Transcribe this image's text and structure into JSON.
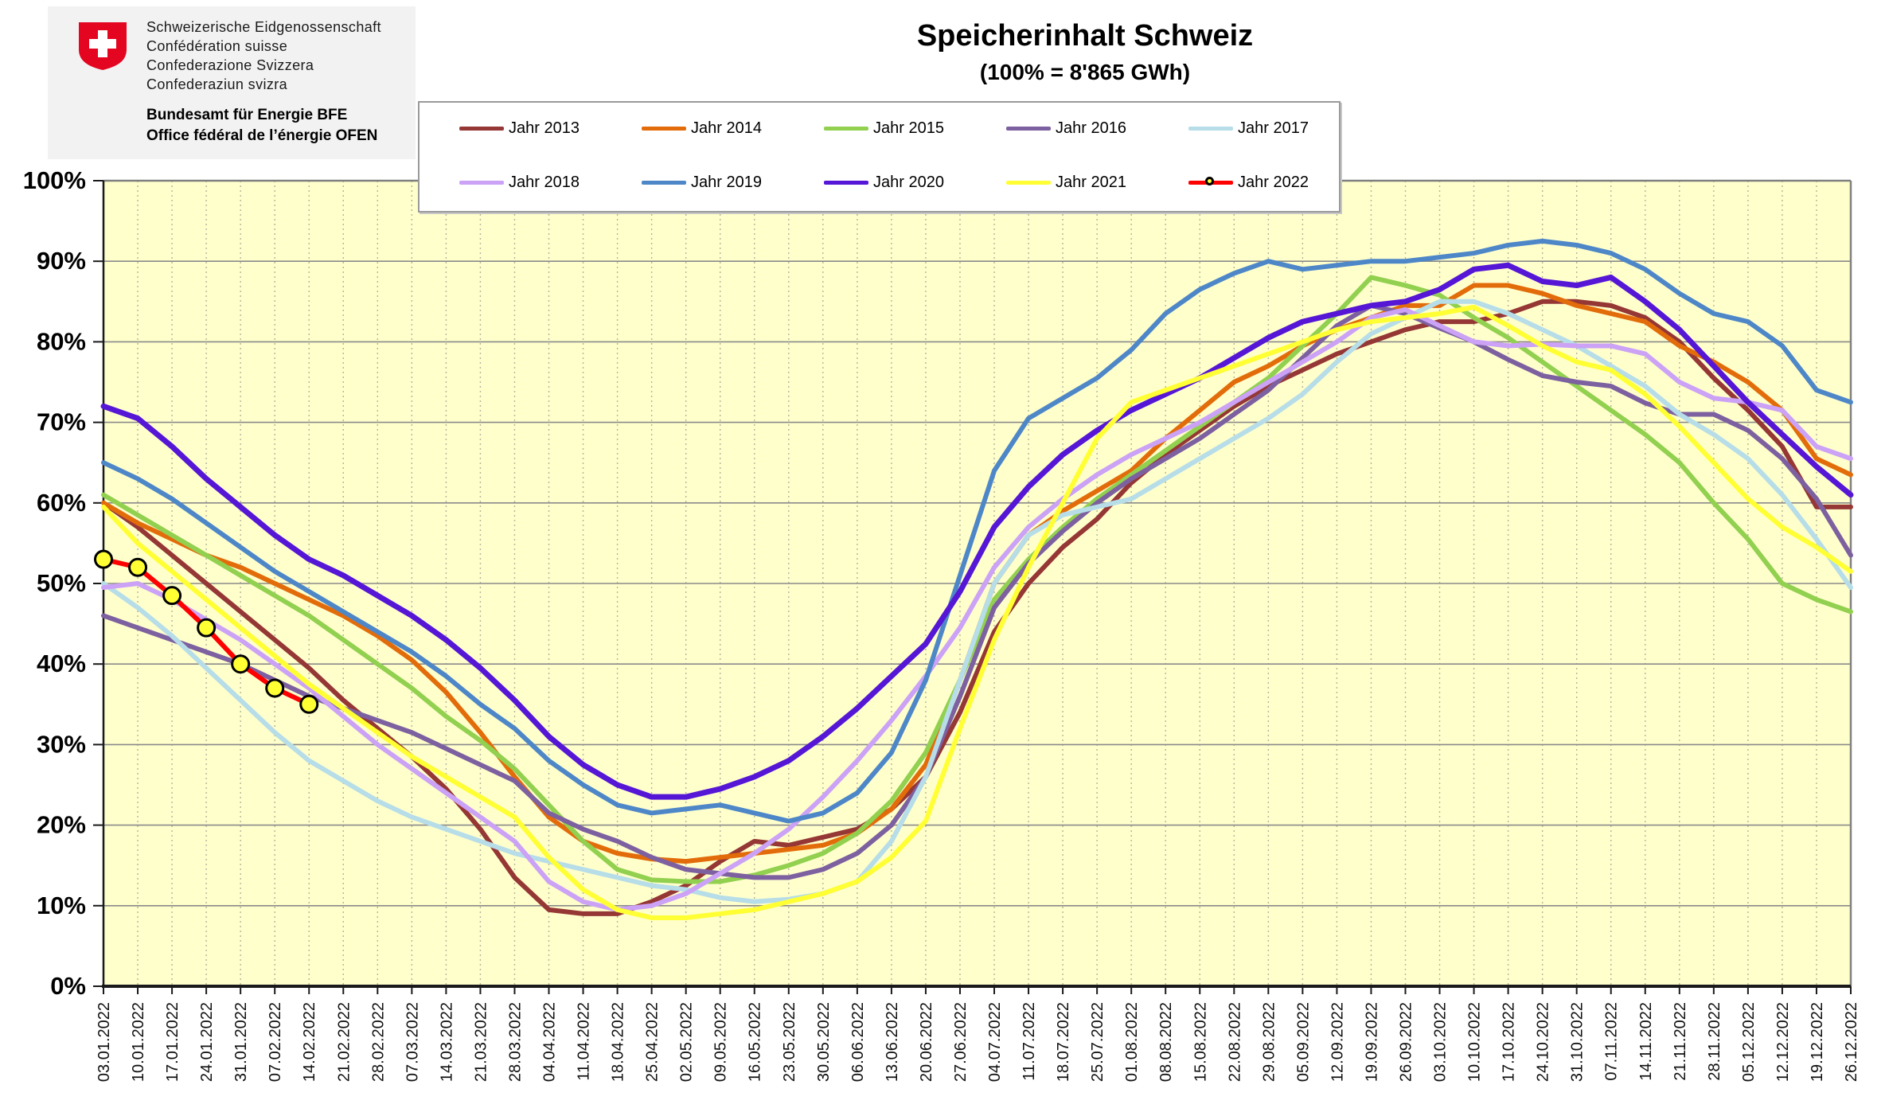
{
  "header": {
    "logo_lines": [
      "Schweizerische Eidgenossenschaft",
      "Confédération suisse",
      "Confederazione Svizzera",
      "Confederaziun svizra"
    ],
    "logo_bold_lines": [
      "Bundesamt für Energie BFE",
      "Office fédéral de l’énergie OFEN"
    ],
    "swiss_flag_color": "#e40521",
    "title": "Speicherinhalt Schweiz",
    "subtitle": "(100% = 8'865 GWh)"
  },
  "legend": {
    "rows": [
      [
        "Jahr 2013",
        "Jahr 2014",
        "Jahr 2015",
        "Jahr 2016",
        "Jahr 2017"
      ],
      [
        "Jahr 2018",
        "Jahr 2019",
        "Jahr 2020",
        "Jahr 2021",
        "Jahr 2022"
      ]
    ]
  },
  "chart_data": {
    "type": "line",
    "title": "Speicherinhalt Schweiz",
    "subtitle": "(100% = 8'865 GWh)",
    "ylabel": "",
    "xlabel": "",
    "ylim": [
      0,
      100
    ],
    "y_unit": "%",
    "y_ticks": [
      0,
      10,
      20,
      30,
      40,
      50,
      60,
      70,
      80,
      90,
      100
    ],
    "grid": {
      "horizontal": "solid",
      "vertical": "dotted"
    },
    "plot_bg": "#ffffcc",
    "legend_position": "top",
    "x": [
      "03.01.2022",
      "10.01.2022",
      "17.01.2022",
      "24.01.2022",
      "31.01.2022",
      "07.02.2022",
      "14.02.2022",
      "21.02.2022",
      "28.02.2022",
      "07.03.2022",
      "14.03.2022",
      "21.03.2022",
      "28.03.2022",
      "04.04.2022",
      "11.04.2022",
      "18.04.2022",
      "25.04.2022",
      "02.05.2022",
      "09.05.2022",
      "16.05.2022",
      "23.05.2022",
      "30.05.2022",
      "06.06.2022",
      "13.06.2022",
      "20.06.2022",
      "27.06.2022",
      "04.07.2022",
      "11.07.2022",
      "18.07.2022",
      "25.07.2022",
      "01.08.2022",
      "08.08.2022",
      "15.08.2022",
      "22.08.2022",
      "29.08.2022",
      "05.09.2022",
      "12.09.2022",
      "19.09.2022",
      "26.09.2022",
      "03.10.2022",
      "10.10.2022",
      "17.10.2022",
      "24.10.2022",
      "31.10.2022",
      "07.11.2022",
      "14.11.2022",
      "21.11.2022",
      "28.11.2022",
      "05.12.2022",
      "12.12.2022",
      "19.12.2022",
      "26.12.2022"
    ],
    "series": [
      {
        "name": "Jahr 2013",
        "color": "#953735",
        "width": 6,
        "values": [
          60,
          57,
          53.5,
          50,
          46.5,
          43,
          39.5,
          35.5,
          32,
          28.5,
          24.5,
          19.5,
          13.5,
          9.5,
          9,
          9,
          10.5,
          12.5,
          15.5,
          18,
          17.5,
          18.5,
          19.5,
          22,
          26,
          34,
          44,
          50,
          54.5,
          58,
          62.5,
          66,
          69,
          72,
          74.5,
          76.5,
          78.5,
          80,
          81.5,
          82.5,
          82.5,
          83.5,
          85,
          85,
          84.5,
          83,
          80,
          75.5,
          71.5,
          67,
          59.5,
          59.5
        ]
      },
      {
        "name": "Jahr 2014",
        "color": "#e36c0a",
        "width": 6,
        "values": [
          60,
          57.5,
          55.5,
          53.5,
          52,
          50,
          48,
          46,
          43.5,
          40.5,
          36.5,
          31.5,
          26,
          21,
          18,
          16.5,
          15.8,
          15.5,
          16,
          16.5,
          17,
          17.5,
          19,
          22,
          27.5,
          38,
          50,
          56,
          59,
          61.5,
          64,
          68,
          71.5,
          75,
          77,
          79.5,
          81.5,
          83,
          84.5,
          84.5,
          87,
          87,
          86,
          84.5,
          83.5,
          82.5,
          79.5,
          77.5,
          75,
          71.5,
          65.5,
          63.5
        ]
      },
      {
        "name": "Jahr 2015",
        "color": "#92d050",
        "width": 6,
        "values": [
          61,
          58.5,
          56,
          53.5,
          51,
          48.5,
          46,
          43,
          40,
          37,
          33.5,
          30.5,
          27,
          22.5,
          18,
          14.5,
          13.2,
          13,
          13,
          13.8,
          15,
          16.5,
          19,
          23,
          29,
          38,
          48,
          53,
          57,
          60.5,
          63.5,
          66.5,
          69.5,
          72.5,
          75.5,
          79.5,
          83.5,
          88,
          87,
          85.8,
          83,
          80.5,
          77.5,
          74.5,
          71.5,
          68.5,
          65,
          60,
          55.5,
          50,
          48,
          46.5
        ]
      },
      {
        "name": "Jahr 2016",
        "color": "#7d60a0",
        "width": 6,
        "values": [
          46,
          44.5,
          43,
          41.5,
          40,
          38,
          36,
          34.5,
          33,
          31.5,
          29.5,
          27.5,
          25.5,
          21.5,
          19.5,
          18,
          16,
          14.5,
          14,
          13.5,
          13.5,
          14.5,
          16.5,
          20,
          26,
          36,
          47,
          52.5,
          56.5,
          60,
          63,
          65.5,
          68,
          71,
          74,
          78,
          82,
          84.5,
          83.5,
          81.7,
          80,
          77.8,
          75.8,
          75,
          74.5,
          72.4,
          71,
          71,
          69,
          65.5,
          60.5,
          53.5
        ]
      },
      {
        "name": "Jahr 2017",
        "color": "#b6dde8",
        "width": 6,
        "values": [
          50,
          47,
          43.5,
          39.5,
          35.5,
          31.5,
          28,
          25.5,
          23,
          21,
          19.5,
          18,
          16.5,
          15.5,
          14.5,
          13.5,
          12.5,
          12,
          11,
          10.5,
          10.8,
          11.5,
          13,
          18,
          26,
          38,
          50,
          56,
          58.5,
          59.5,
          60.5,
          63,
          65.5,
          68,
          70.5,
          73.5,
          77.5,
          81,
          83,
          85,
          85,
          83.5,
          81.5,
          79.5,
          77,
          74.5,
          71,
          68.5,
          65.5,
          61,
          55.5,
          49.5
        ]
      },
      {
        "name": "Jahr 2018",
        "color": "#cba2f6",
        "width": 6,
        "values": [
          49.5,
          50,
          48,
          45.5,
          43,
          40,
          37,
          33.5,
          30,
          27,
          24,
          21,
          18,
          13,
          10.5,
          9.5,
          10,
          11.5,
          14,
          16.5,
          19.5,
          23.5,
          28,
          33,
          38.5,
          44.5,
          52,
          57,
          60.5,
          63.5,
          66,
          68,
          70,
          72.5,
          75,
          77.5,
          80,
          83,
          84,
          82,
          80,
          79.5,
          79.7,
          79.5,
          79.5,
          78.5,
          75,
          73,
          72.5,
          71.5,
          67,
          65.5
        ]
      },
      {
        "name": "Jahr 2019",
        "color": "#4e87c8",
        "width": 6,
        "values": [
          65,
          63,
          60.5,
          57.5,
          54.5,
          51.5,
          49,
          46.5,
          44,
          41.5,
          38.5,
          35,
          32,
          28,
          25,
          22.5,
          21.5,
          22,
          22.5,
          21.5,
          20.5,
          21.5,
          24,
          29,
          38,
          51,
          64,
          70.5,
          73,
          75.5,
          79,
          83.5,
          86.5,
          88.5,
          90,
          89,
          89.5,
          90,
          90,
          90.5,
          91,
          92,
          92.5,
          92,
          91,
          89,
          86,
          83.5,
          82.5,
          79.5,
          74,
          72.5
        ]
      },
      {
        "name": "Jahr 2020",
        "color": "#5616d6",
        "width": 7,
        "values": [
          72,
          70.5,
          67,
          63,
          59.5,
          56,
          53,
          51,
          48.5,
          46,
          43,
          39.5,
          35.5,
          31,
          27.5,
          25,
          23.5,
          23.5,
          24.5,
          26,
          28,
          31,
          34.5,
          38.5,
          42.5,
          49,
          57,
          62,
          66,
          69,
          71.5,
          73.5,
          75.5,
          78,
          80.5,
          82.5,
          83.5,
          84.5,
          85,
          86.5,
          89,
          89.5,
          87.5,
          87,
          88,
          85,
          81.5,
          77,
          72.5,
          68.5,
          64.5,
          61
        ]
      },
      {
        "name": "Jahr 2021",
        "color": "#ffff33",
        "width": 6,
        "values": [
          59.5,
          55,
          51.5,
          48,
          44.5,
          41,
          37.5,
          34.5,
          31.5,
          28.5,
          26,
          23.5,
          21,
          16,
          12,
          9.5,
          8.5,
          8.5,
          9,
          9.5,
          10.5,
          11.5,
          13,
          16,
          20.5,
          32,
          43,
          52,
          60,
          68,
          72.5,
          74,
          75.5,
          77,
          78.5,
          80,
          81.5,
          82.5,
          83,
          83.5,
          84.3,
          82,
          79.5,
          77.5,
          76.5,
          73.5,
          69.5,
          65,
          60.5,
          57,
          54.5,
          51.5
        ]
      },
      {
        "name": "Jahr 2022",
        "color": "#ff0000",
        "width": 6,
        "marker": {
          "shape": "circle",
          "fill": "#ffff33",
          "stroke": "#000000",
          "radius": 10.5
        },
        "values": [
          53,
          52,
          48.5,
          44.5,
          40,
          37,
          35
        ]
      }
    ]
  },
  "colors": {
    "plot_bg": "#ffffcc",
    "grid_h": "#8a8a8a",
    "grid_v": "#b3b39e",
    "border": "#808080",
    "axis": "#1a1a1a"
  }
}
